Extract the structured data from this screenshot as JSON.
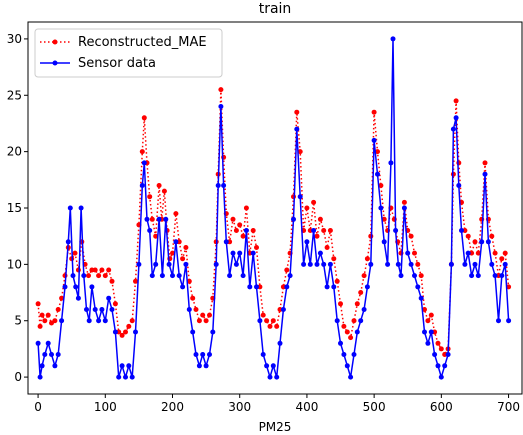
{
  "chart_data": {
    "type": "line",
    "title": "train",
    "xlabel": "PM25",
    "ylabel": "",
    "xlim": [
      -15,
      720
    ],
    "ylim": [
      -1.5,
      31.5
    ],
    "xticks": [
      0,
      100,
      200,
      300,
      400,
      500,
      600,
      700
    ],
    "yticks": [
      0,
      5,
      10,
      15,
      20,
      25,
      30
    ],
    "grid": false,
    "legend_position": "top-left",
    "series": [
      {
        "name": "Reconstructed_MAE",
        "color": "#ff0000",
        "linestyle": "dotted",
        "marker": "circle",
        "keypoints": [
          [
            0,
            6.5
          ],
          [
            3,
            4.5
          ],
          [
            6,
            5.5
          ],
          [
            10,
            5.0
          ],
          [
            15,
            5.5
          ],
          [
            20,
            4.8
          ],
          [
            25,
            5.0
          ],
          [
            30,
            6.0
          ],
          [
            35,
            7.0
          ],
          [
            40,
            9.0
          ],
          [
            45,
            11.5
          ],
          [
            50,
            10.5
          ],
          [
            55,
            11.0
          ],
          [
            60,
            9.5
          ],
          [
            65,
            12.0
          ],
          [
            70,
            10.0
          ],
          [
            75,
            9.0
          ],
          [
            80,
            9.5
          ],
          [
            85,
            9.5
          ],
          [
            90,
            9.0
          ],
          [
            95,
            9.5
          ],
          [
            100,
            9.0
          ],
          [
            105,
            9.5
          ],
          [
            110,
            8.5
          ],
          [
            115,
            6.5
          ],
          [
            120,
            4.0
          ],
          [
            125,
            3.7
          ],
          [
            130,
            4.0
          ],
          [
            135,
            4.5
          ],
          [
            140,
            5.0
          ],
          [
            145,
            8.5
          ],
          [
            150,
            13.5
          ],
          [
            155,
            20.0
          ],
          [
            158,
            23.0
          ],
          [
            162,
            19.0
          ],
          [
            166,
            16.0
          ],
          [
            170,
            14.0
          ],
          [
            175,
            12.5
          ],
          [
            180,
            17.0
          ],
          [
            184,
            14.0
          ],
          [
            188,
            16.5
          ],
          [
            192,
            13.0
          ],
          [
            196,
            10.5
          ],
          [
            200,
            11.0
          ],
          [
            205,
            14.5
          ],
          [
            210,
            12.0
          ],
          [
            215,
            10.5
          ],
          [
            220,
            11.5
          ],
          [
            225,
            8.5
          ],
          [
            230,
            7.0
          ],
          [
            235,
            6.0
          ],
          [
            240,
            5.0
          ],
          [
            245,
            5.5
          ],
          [
            250,
            5.0
          ],
          [
            255,
            5.5
          ],
          [
            260,
            7.0
          ],
          [
            265,
            12.0
          ],
          [
            268,
            18.0
          ],
          [
            272,
            25.5
          ],
          [
            276,
            19.5
          ],
          [
            280,
            14.5
          ],
          [
            285,
            12.0
          ],
          [
            290,
            14.0
          ],
          [
            295,
            13.0
          ],
          [
            300,
            13.5
          ],
          [
            305,
            12.5
          ],
          [
            310,
            15.0
          ],
          [
            315,
            11.0
          ],
          [
            320,
            13.0
          ],
          [
            325,
            11.5
          ],
          [
            330,
            8.0
          ],
          [
            335,
            5.5
          ],
          [
            340,
            5.0
          ],
          [
            345,
            4.5
          ],
          [
            350,
            5.0
          ],
          [
            355,
            4.5
          ],
          [
            360,
            6.0
          ],
          [
            365,
            8.0
          ],
          [
            370,
            9.5
          ],
          [
            375,
            11.0
          ],
          [
            380,
            16.0
          ],
          [
            385,
            23.5
          ],
          [
            390,
            20.0
          ],
          [
            395,
            13.0
          ],
          [
            400,
            15.0
          ],
          [
            405,
            13.0
          ],
          [
            410,
            15.5
          ],
          [
            415,
            12.5
          ],
          [
            420,
            14.0
          ],
          [
            425,
            13.0
          ],
          [
            430,
            11.5
          ],
          [
            435,
            13.0
          ],
          [
            440,
            10.5
          ],
          [
            445,
            8.5
          ],
          [
            450,
            6.5
          ],
          [
            455,
            4.5
          ],
          [
            460,
            4.0
          ],
          [
            465,
            3.5
          ],
          [
            470,
            5.0
          ],
          [
            475,
            6.5
          ],
          [
            480,
            7.5
          ],
          [
            485,
            9.0
          ],
          [
            490,
            10.5
          ],
          [
            495,
            12.5
          ],
          [
            500,
            23.5
          ],
          [
            505,
            20.0
          ],
          [
            510,
            17.0
          ],
          [
            515,
            14.0
          ],
          [
            520,
            13.0
          ],
          [
            525,
            15.0
          ],
          [
            530,
            14.0
          ],
          [
            535,
            12.0
          ],
          [
            540,
            11.0
          ],
          [
            545,
            15.5
          ],
          [
            550,
            13.0
          ],
          [
            555,
            12.5
          ],
          [
            560,
            11.0
          ],
          [
            565,
            10.0
          ],
          [
            570,
            9.0
          ],
          [
            575,
            6.0
          ],
          [
            580,
            5.0
          ],
          [
            585,
            5.5
          ],
          [
            590,
            4.0
          ],
          [
            595,
            3.0
          ],
          [
            600,
            2.5
          ],
          [
            605,
            2.0
          ],
          [
            610,
            2.5
          ],
          [
            615,
            10.0
          ],
          [
            618,
            18.0
          ],
          [
            622,
            24.5
          ],
          [
            626,
            19.0
          ],
          [
            630,
            15.5
          ],
          [
            635,
            13.0
          ],
          [
            640,
            12.5
          ],
          [
            645,
            11.0
          ],
          [
            650,
            12.0
          ],
          [
            655,
            11.0
          ],
          [
            660,
            14.0
          ],
          [
            665,
            19.0
          ],
          [
            670,
            14.0
          ],
          [
            675,
            12.5
          ],
          [
            680,
            11.0
          ],
          [
            685,
            9.0
          ],
          [
            690,
            10.5
          ],
          [
            695,
            11.0
          ],
          [
            700,
            8.0
          ]
        ]
      },
      {
        "name": "Sensor data",
        "color": "#0000ff",
        "linestyle": "solid",
        "marker": "circle",
        "keypoints": [
          [
            0,
            3.0
          ],
          [
            3,
            0.0
          ],
          [
            6,
            1.0
          ],
          [
            10,
            2.0
          ],
          [
            15,
            3.0
          ],
          [
            20,
            2.0
          ],
          [
            25,
            1.0
          ],
          [
            30,
            2.0
          ],
          [
            35,
            5.0
          ],
          [
            40,
            8.0
          ],
          [
            45,
            12.0
          ],
          [
            48,
            15.0
          ],
          [
            52,
            9.0
          ],
          [
            56,
            8.0
          ],
          [
            60,
            7.0
          ],
          [
            64,
            15.0
          ],
          [
            68,
            9.0
          ],
          [
            72,
            6.0
          ],
          [
            76,
            5.0
          ],
          [
            80,
            8.0
          ],
          [
            85,
            6.0
          ],
          [
            90,
            5.0
          ],
          [
            95,
            6.0
          ],
          [
            100,
            5.0
          ],
          [
            105,
            7.0
          ],
          [
            110,
            6.0
          ],
          [
            115,
            4.0
          ],
          [
            120,
            0.0
          ],
          [
            125,
            1.0
          ],
          [
            130,
            0.0
          ],
          [
            135,
            1.0
          ],
          [
            140,
            0.0
          ],
          [
            145,
            4.0
          ],
          [
            150,
            10.0
          ],
          [
            155,
            17.0
          ],
          [
            158,
            19.0
          ],
          [
            162,
            14.0
          ],
          [
            166,
            13.0
          ],
          [
            170,
            9.0
          ],
          [
            175,
            10.0
          ],
          [
            180,
            14.0
          ],
          [
            185,
            9.0
          ],
          [
            190,
            14.0
          ],
          [
            195,
            10.0
          ],
          [
            200,
            9.0
          ],
          [
            205,
            12.0
          ],
          [
            210,
            9.0
          ],
          [
            215,
            8.0
          ],
          [
            220,
            10.0
          ],
          [
            225,
            6.0
          ],
          [
            230,
            4.0
          ],
          [
            235,
            2.0
          ],
          [
            240,
            1.0
          ],
          [
            245,
            2.0
          ],
          [
            250,
            1.0
          ],
          [
            255,
            2.0
          ],
          [
            260,
            4.0
          ],
          [
            265,
            10.0
          ],
          [
            268,
            17.0
          ],
          [
            272,
            24.0
          ],
          [
            276,
            17.0
          ],
          [
            280,
            12.0
          ],
          [
            285,
            9.0
          ],
          [
            290,
            11.0
          ],
          [
            295,
            10.0
          ],
          [
            300,
            11.0
          ],
          [
            305,
            9.0
          ],
          [
            310,
            13.0
          ],
          [
            315,
            8.0
          ],
          [
            320,
            11.0
          ],
          [
            325,
            8.0
          ],
          [
            330,
            5.0
          ],
          [
            335,
            2.0
          ],
          [
            340,
            1.0
          ],
          [
            345,
            0.0
          ],
          [
            350,
            1.0
          ],
          [
            355,
            0.0
          ],
          [
            360,
            3.0
          ],
          [
            365,
            6.0
          ],
          [
            370,
            8.0
          ],
          [
            375,
            9.0
          ],
          [
            380,
            14.0
          ],
          [
            385,
            22.0
          ],
          [
            390,
            16.0
          ],
          [
            395,
            10.0
          ],
          [
            400,
            12.0
          ],
          [
            405,
            10.0
          ],
          [
            410,
            13.0
          ],
          [
            415,
            10.0
          ],
          [
            420,
            11.0
          ],
          [
            425,
            10.0
          ],
          [
            430,
            8.0
          ],
          [
            435,
            10.0
          ],
          [
            440,
            8.0
          ],
          [
            445,
            5.0
          ],
          [
            450,
            3.0
          ],
          [
            455,
            2.0
          ],
          [
            460,
            1.0
          ],
          [
            465,
            0.0
          ],
          [
            470,
            2.0
          ],
          [
            475,
            4.0
          ],
          [
            480,
            5.0
          ],
          [
            485,
            6.0
          ],
          [
            490,
            8.0
          ],
          [
            495,
            10.0
          ],
          [
            500,
            21.0
          ],
          [
            505,
            18.0
          ],
          [
            510,
            15.0
          ],
          [
            515,
            12.0
          ],
          [
            520,
            10.0
          ],
          [
            525,
            19.0
          ],
          [
            528,
            30.0
          ],
          [
            532,
            13.0
          ],
          [
            536,
            10.0
          ],
          [
            540,
            9.0
          ],
          [
            545,
            15.0
          ],
          [
            550,
            11.0
          ],
          [
            555,
            10.0
          ],
          [
            560,
            9.0
          ],
          [
            565,
            8.0
          ],
          [
            570,
            7.0
          ],
          [
            575,
            4.0
          ],
          [
            580,
            3.0
          ],
          [
            585,
            4.0
          ],
          [
            590,
            2.0
          ],
          [
            595,
            1.0
          ],
          [
            600,
            0.0
          ],
          [
            605,
            1.0
          ],
          [
            610,
            2.0
          ],
          [
            615,
            10.0
          ],
          [
            618,
            22.0
          ],
          [
            622,
            23.0
          ],
          [
            626,
            17.0
          ],
          [
            630,
            13.0
          ],
          [
            635,
            10.0
          ],
          [
            640,
            11.0
          ],
          [
            645,
            9.0
          ],
          [
            650,
            10.0
          ],
          [
            655,
            9.0
          ],
          [
            660,
            12.0
          ],
          [
            665,
            18.0
          ],
          [
            670,
            12.0
          ],
          [
            675,
            10.0
          ],
          [
            680,
            9.0
          ],
          [
            685,
            5.0
          ],
          [
            690,
            9.0
          ],
          [
            695,
            10.0
          ],
          [
            700,
            5.0
          ]
        ]
      }
    ]
  }
}
